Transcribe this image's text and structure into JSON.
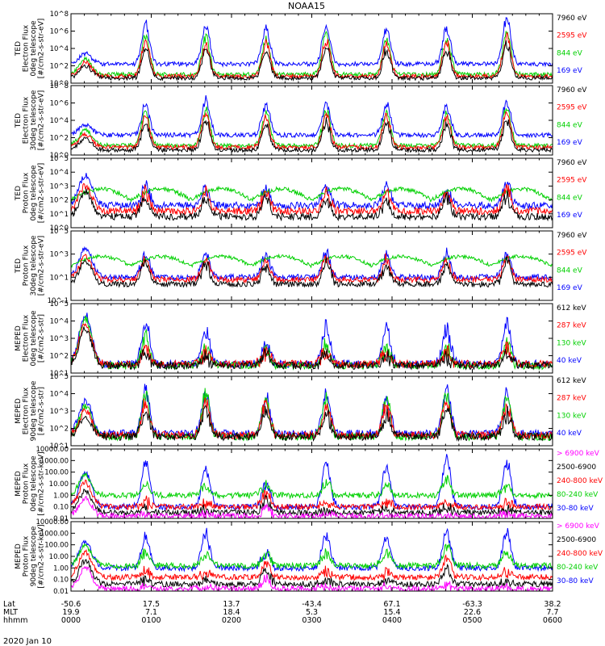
{
  "title": "NOAA15",
  "date_label": "2020 Jan 10",
  "colors": {
    "blue": "#0000ff",
    "red": "#ff0000",
    "green": "#00d000",
    "black": "#000000",
    "magenta": "#ff00ff"
  },
  "chart_data": [
    {
      "type": "line",
      "ylabel": [
        "TED",
        "Electron Flux",
        "0deg telescope",
        "[#/cm2-s-str-eV]"
      ],
      "yticks": [
        "10^8",
        "10^6",
        "10^4",
        "10^2",
        "10^0"
      ],
      "ylog": [
        0,
        8
      ],
      "legend": [
        {
          "label": "7960 eV",
          "color": "black"
        },
        {
          "label": "2595 eV",
          "color": "red"
        },
        {
          "label": "844 eV",
          "color": "green"
        },
        {
          "label": "169 eV",
          "color": "blue"
        }
      ],
      "pattern": "ted_e",
      "series": [
        {
          "name": "169 eV",
          "color": "blue",
          "base": 2.2,
          "peak": [
            3.4,
            6.8,
            6.5,
            6.2,
            6.6,
            6.3,
            6.3,
            7.4
          ]
        },
        {
          "name": "844 eV",
          "color": "green",
          "base": 1.0,
          "peak": [
            2.8,
            5.5,
            5.3,
            5.0,
            5.6,
            5.0,
            5.1,
            6.0
          ]
        },
        {
          "name": "2595 eV",
          "color": "red",
          "base": 0.8,
          "peak": [
            2.4,
            4.8,
            4.6,
            4.4,
            4.9,
            4.5,
            4.6,
            5.3
          ]
        },
        {
          "name": "7960 eV",
          "color": "black",
          "base": 0.6,
          "peak": [
            2.0,
            4.0,
            3.8,
            3.5,
            4.0,
            3.6,
            3.8,
            4.4
          ]
        }
      ]
    },
    {
      "type": "line",
      "ylabel": [
        "TED",
        "Electron Flux",
        "30deg telescope",
        "[#/cm2-s-str-eV]"
      ],
      "yticks": [
        "10^8",
        "10^6",
        "10^4",
        "10^2",
        "10^0"
      ],
      "ylog": [
        0,
        8
      ],
      "legend": [
        {
          "label": "7960 eV",
          "color": "black"
        },
        {
          "label": "2595 eV",
          "color": "red"
        },
        {
          "label": "844 eV",
          "color": "green"
        },
        {
          "label": "169 eV",
          "color": "blue"
        }
      ],
      "pattern": "ted_e",
      "series": [
        {
          "name": "169 eV",
          "color": "blue",
          "base": 2.3,
          "peak": [
            3.5,
            5.8,
            6.4,
            5.7,
            5.9,
            5.8,
            5.6,
            6.1
          ]
        },
        {
          "name": "844 eV",
          "color": "green",
          "base": 1.1,
          "peak": [
            2.9,
            5.0,
            5.3,
            4.8,
            5.0,
            4.9,
            4.7,
            5.4
          ]
        },
        {
          "name": "2595 eV",
          "color": "red",
          "base": 0.9,
          "peak": [
            2.4,
            4.5,
            4.7,
            4.3,
            4.5,
            4.4,
            4.2,
            4.9
          ]
        },
        {
          "name": "7960 eV",
          "color": "black",
          "base": 0.6,
          "peak": [
            1.9,
            3.6,
            3.9,
            3.4,
            3.7,
            3.5,
            3.4,
            4.0
          ]
        }
      ]
    },
    {
      "type": "line",
      "ylabel": [
        "TED",
        "Proton Flux",
        "0deg telescope",
        "[#/cm2-s-str-eV]"
      ],
      "yticks": [
        "10^5",
        "10^4",
        "10^3",
        "10^2",
        "10^1",
        "10^0"
      ],
      "ylog": [
        0,
        5
      ],
      "legend": [
        {
          "label": "7960 eV",
          "color": "black"
        },
        {
          "label": "2595 eV",
          "color": "red"
        },
        {
          "label": "844 eV",
          "color": "green"
        },
        {
          "label": "169 eV",
          "color": "blue"
        }
      ],
      "pattern": "ted_p",
      "series": [
        {
          "name": "169 eV",
          "color": "blue",
          "base": 1.6,
          "peak": [
            3.8,
            3.0,
            2.9,
            2.8,
            3.0,
            2.9,
            2.7,
            3.2
          ]
        },
        {
          "name": "844 eV",
          "color": "green",
          "base": 2.0,
          "peak": [
            3.5,
            3.0,
            3.1,
            3.0,
            3.2,
            3.0,
            3.1,
            3.2
          ]
        },
        {
          "name": "2595 eV",
          "color": "red",
          "base": 1.2,
          "peak": [
            3.0,
            2.6,
            2.5,
            2.5,
            2.6,
            2.4,
            2.5,
            2.7
          ]
        },
        {
          "name": "7960 eV",
          "color": "black",
          "base": 0.8,
          "peak": [
            2.6,
            2.2,
            2.1,
            2.0,
            2.2,
            2.0,
            2.1,
            2.3
          ]
        }
      ]
    },
    {
      "type": "line",
      "ylabel": [
        "TED",
        "Proton Flux",
        "30deg telescope",
        "[#/cm2-s-str-eV]"
      ],
      "yticks": [
        "10^5",
        "10^3",
        "10^1",
        "10^-1"
      ],
      "ylog": [
        -1,
        5
      ],
      "legend": [
        {
          "label": "7960 eV",
          "color": "black"
        },
        {
          "label": "2595 eV",
          "color": "red"
        },
        {
          "label": "844 eV",
          "color": "green"
        },
        {
          "label": "169 eV",
          "color": "blue"
        }
      ],
      "pattern": "ted_p",
      "series": [
        {
          "name": "169 eV",
          "color": "blue",
          "base": 1.0,
          "peak": [
            3.6,
            3.2,
            3.0,
            2.9,
            3.1,
            3.0,
            2.9,
            3.0
          ]
        },
        {
          "name": "844 eV",
          "color": "green",
          "base": 2.0,
          "peak": [
            3.0,
            2.8,
            2.9,
            2.9,
            3.0,
            2.9,
            2.9,
            2.9
          ]
        },
        {
          "name": "2595 eV",
          "color": "red",
          "base": 0.8,
          "peak": [
            2.8,
            2.6,
            2.5,
            2.4,
            2.6,
            2.5,
            2.4,
            2.6
          ]
        },
        {
          "name": "7960 eV",
          "color": "black",
          "base": 0.4,
          "peak": [
            2.4,
            2.2,
            2.1,
            2.0,
            2.2,
            2.1,
            2.0,
            2.2
          ]
        }
      ]
    },
    {
      "type": "line",
      "ylabel": [
        "MEPED",
        "Electron Flux",
        "0deg telescope",
        "[#/cm2-s-str]"
      ],
      "yticks": [
        "10^5",
        "10^4",
        "10^3",
        "10^2",
        "10^1"
      ],
      "ylog": [
        1,
        5.6
      ],
      "legend": [
        {
          "label": "612 keV",
          "color": "black"
        },
        {
          "label": "287 keV",
          "color": "red"
        },
        {
          "label": "130 keV",
          "color": "green"
        },
        {
          "label": "40 keV",
          "color": "blue"
        }
      ],
      "pattern": "meped_e0",
      "series": [
        {
          "name": "40 keV",
          "color": "blue",
          "base": 1.6,
          "peak": [
            4.9,
            4.3,
            3.8,
            3.0,
            4.0,
            4.0,
            3.8,
            4.3
          ]
        },
        {
          "name": "130 keV",
          "color": "green",
          "base": 1.5,
          "peak": [
            4.6,
            3.3,
            2.6,
            2.4,
            2.8,
            2.7,
            2.6,
            2.9
          ]
        },
        {
          "name": "287 keV",
          "color": "red",
          "base": 1.6,
          "peak": [
            4.3,
            2.6,
            2.3,
            2.4,
            2.4,
            2.4,
            2.3,
            2.6
          ]
        },
        {
          "name": "612 keV",
          "color": "black",
          "base": 1.5,
          "peak": [
            3.9,
            2.2,
            2.1,
            2.3,
            2.2,
            2.2,
            2.1,
            2.3
          ]
        }
      ]
    },
    {
      "type": "line",
      "ylabel": [
        "MEPED",
        "Electron Flux",
        "90deg telescope",
        "[#/cm2-s-str]"
      ],
      "yticks": [
        "10^5",
        "10^4",
        "10^3",
        "10^2",
        "10^1"
      ],
      "ylog": [
        1,
        5.6
      ],
      "legend": [
        {
          "label": "612 keV",
          "color": "black"
        },
        {
          "label": "287 keV",
          "color": "red"
        },
        {
          "label": "130 keV",
          "color": "green"
        },
        {
          "label": "40 keV",
          "color": "blue"
        }
      ],
      "pattern": "meped_e90",
      "series": [
        {
          "name": "40 keV",
          "color": "blue",
          "base": 1.8,
          "peak": [
            4.0,
            4.6,
            4.5,
            4.3,
            4.3,
            4.1,
            4.8,
            4.3
          ]
        },
        {
          "name": "130 keV",
          "color": "green",
          "base": 1.6,
          "peak": [
            3.6,
            4.3,
            4.3,
            4.1,
            4.0,
            3.9,
            4.5,
            4.0
          ]
        },
        {
          "name": "287 keV",
          "color": "red",
          "base": 1.7,
          "peak": [
            3.3,
            3.9,
            4.0,
            3.8,
            3.7,
            3.6,
            4.1,
            3.7
          ]
        },
        {
          "name": "612 keV",
          "color": "black",
          "base": 1.6,
          "peak": [
            2.9,
            3.3,
            3.4,
            3.2,
            3.1,
            3.0,
            3.5,
            3.1
          ]
        }
      ]
    },
    {
      "type": "line",
      "ylabel": [
        "MEPED",
        "Proton Flux",
        "0deg telescope",
        "[#/cm2-s-str-keV]"
      ],
      "yticks": [
        "10000.00",
        "1000.00",
        "100.00",
        "10.00",
        "1.00",
        "0.10",
        "0.01"
      ],
      "ylog": [
        -2,
        4
      ],
      "legend": [
        {
          "label": "> 6900 keV",
          "color": "magenta"
        },
        {
          "label": "2500-6900",
          "color": "black"
        },
        {
          "label": "240-800 keV",
          "color": "red"
        },
        {
          "label": "80-240 keV",
          "color": "green"
        },
        {
          "label": "30-80 keV",
          "color": "blue"
        }
      ],
      "pattern": "meped_p",
      "series": [
        {
          "name": "30-80 keV",
          "color": "blue",
          "base": -1.0,
          "peak": [
            1.9,
            3.0,
            2.3,
            1.0,
            2.8,
            2.4,
            3.2,
            2.9
          ]
        },
        {
          "name": "80-240 keV",
          "color": "green",
          "base": 0.0,
          "peak": [
            1.7,
            0.9,
            0.8,
            0.9,
            1.0,
            0.9,
            1.5,
            0.8
          ]
        },
        {
          "name": "240-800 keV",
          "color": "red",
          "base": -1.0,
          "peak": [
            1.1,
            -0.6,
            -0.7,
            0.2,
            -0.6,
            -0.7,
            -0.6,
            -0.7
          ]
        },
        {
          "name": "2500-6900",
          "color": "black",
          "base": -1.5,
          "peak": [
            0.4,
            -1.3,
            -1.3,
            -0.4,
            -1.3,
            -1.3,
            -1.0,
            -1.3
          ]
        },
        {
          "name": "> 6900 keV",
          "color": "magenta",
          "base": -1.8,
          "peak": [
            -0.2,
            -1.8,
            -1.8,
            -1.0,
            -1.8,
            -1.8,
            -1.8,
            -1.8
          ]
        }
      ]
    },
    {
      "type": "line",
      "ylabel": [
        "MEPED",
        "Proton Flux",
        "90deg telescope",
        "[#/cm2-s-str-keV]"
      ],
      "yticks": [
        "10000.00",
        "1000.00",
        "100.00",
        "10.00",
        "1.00",
        "0.10",
        "0.01"
      ],
      "ylog": [
        -2,
        4
      ],
      "legend": [
        {
          "label": "> 6900 keV",
          "color": "magenta"
        },
        {
          "label": "2500-6900",
          "color": "black"
        },
        {
          "label": "240-800 keV",
          "color": "red"
        },
        {
          "label": "80-240 keV",
          "color": "green"
        },
        {
          "label": "30-80 keV",
          "color": "blue"
        }
      ],
      "pattern": "meped_p",
      "series": [
        {
          "name": "30-80 keV",
          "color": "blue",
          "base": 0.0,
          "peak": [
            2.3,
            2.8,
            2.9,
            1.3,
            2.9,
            2.8,
            3.0,
            3.0
          ]
        },
        {
          "name": "80-240 keV",
          "color": "green",
          "base": 0.2,
          "peak": [
            1.9,
            1.3,
            1.2,
            1.1,
            1.3,
            1.3,
            1.8,
            1.2
          ]
        },
        {
          "name": "240-800 keV",
          "color": "red",
          "base": -0.8,
          "peak": [
            1.4,
            -0.3,
            -0.4,
            0.4,
            -0.3,
            -0.4,
            0.9,
            -0.4
          ]
        },
        {
          "name": "2500-6900",
          "color": "black",
          "base": -1.4,
          "peak": [
            0.6,
            -1.1,
            -1.1,
            -0.2,
            -1.1,
            -1.1,
            -0.1,
            -1.1
          ]
        },
        {
          "name": "> 6900 keV",
          "color": "magenta",
          "base": -1.8,
          "peak": [
            0.0,
            -1.8,
            -1.8,
            -0.9,
            -1.8,
            -1.8,
            -1.5,
            -1.8
          ]
        }
      ]
    }
  ],
  "x_axis": {
    "row_labels": [
      "Lat",
      "MLT",
      "hhmm"
    ],
    "ticks": [
      {
        "lat": "-50.6",
        "mlt": "19.9",
        "hhmm": "0000"
      },
      {
        "lat": "17.5",
        "mlt": "7.1",
        "hhmm": "0100"
      },
      {
        "lat": "13.7",
        "mlt": "18.4",
        "hhmm": "0200"
      },
      {
        "lat": "-43.4",
        "mlt": "5.3",
        "hhmm": "0300"
      },
      {
        "lat": "67.1",
        "mlt": "15.4",
        "hhmm": "0400"
      },
      {
        "lat": "-63.3",
        "mlt": "22.6",
        "hhmm": "0500"
      },
      {
        "lat": "38.2",
        "mlt": "7.7",
        "hhmm": "0600"
      }
    ]
  },
  "pass_centers_hhmm": [
    0.18,
    0.93,
    1.68,
    2.43,
    3.18,
    3.93,
    4.68,
    5.43
  ]
}
